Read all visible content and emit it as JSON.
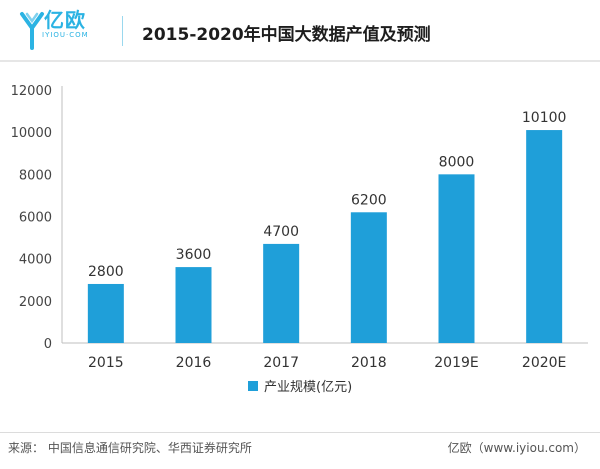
{
  "header": {
    "logo_name": "亿欧",
    "logo_sub": "IYIOU·COM",
    "title": "2015-2020年中国大数据产值及预测"
  },
  "footer": {
    "source": "来源：  中国信息通信研究院、华西证券研究所",
    "credit": "亿欧（www.iyiou.com）"
  },
  "colors": {
    "bar": "#1f9fd9",
    "accent": "#2bb3e3"
  },
  "chart_data": {
    "type": "bar",
    "categories": [
      "2015",
      "2016",
      "2017",
      "2018",
      "2019E",
      "2020E"
    ],
    "series": [
      {
        "name": "产业规模(亿元)",
        "values": [
          2800,
          3600,
          4700,
          6200,
          8000,
          10100
        ]
      }
    ],
    "yticks": [
      "0",
      "2000",
      "4000",
      "6000",
      "8000",
      "10000",
      "12000"
    ],
    "ylim": [
      0,
      12000
    ],
    "grid": false,
    "legend": "bottom-center"
  }
}
